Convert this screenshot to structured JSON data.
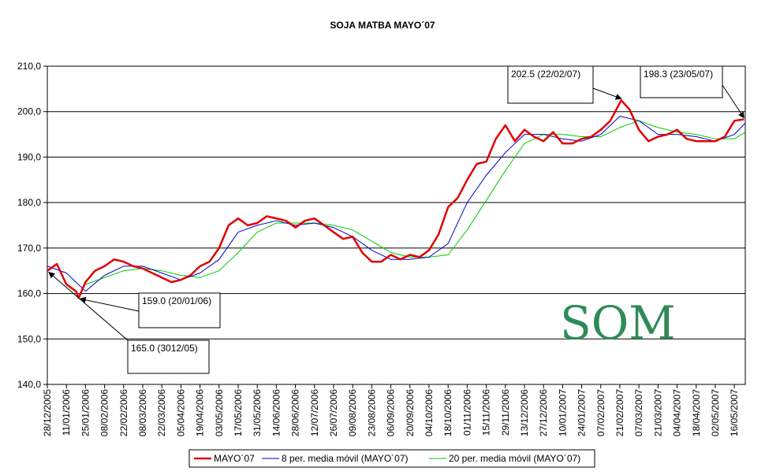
{
  "chart_data": {
    "type": "line",
    "title": "SOJA MATBA MAYO´07",
    "xlabel": "",
    "ylabel": "",
    "ylim": [
      140,
      210
    ],
    "yticks": [
      "140,0",
      "150,0",
      "160,0",
      "170,0",
      "180,0",
      "190,0",
      "200,0",
      "210,0"
    ],
    "ytick_values": [
      140,
      150,
      160,
      170,
      180,
      190,
      200,
      210
    ],
    "xlim": [
      "28/12/2005",
      "24/05/2007"
    ],
    "xticks": [
      "28/12/2005",
      "11/01/2006",
      "25/01/2006",
      "08/02/2006",
      "22/02/2006",
      "08/03/2006",
      "22/03/2006",
      "05/04/2006",
      "19/04/2006",
      "03/05/2006",
      "17/05/2006",
      "31/05/2006",
      "14/06/2006",
      "28/06/2006",
      "12/07/2006",
      "26/07/2006",
      "09/08/2006",
      "23/08/2006",
      "06/09/2006",
      "20/09/2006",
      "04/10/2006",
      "18/10/2006",
      "01/11/2006",
      "15/11/2006",
      "29/11/2006",
      "13/12/2006",
      "27/12/2006",
      "10/01/2007",
      "24/01/2007",
      "07/02/2007",
      "21/02/2007",
      "07/03/2007",
      "21/03/2007",
      "04/04/2007",
      "18/04/2007",
      "02/05/2007",
      "16/05/2007"
    ],
    "grid": "horizontal",
    "legend_position": "bottom",
    "series": [
      {
        "name": "MAYO´07",
        "color": "#e00000",
        "x": [
          "28/12/2005",
          "04/01/2006",
          "11/01/2006",
          "18/01/2006",
          "20/01/2006",
          "25/01/2006",
          "01/02/2006",
          "08/02/2006",
          "15/02/2006",
          "22/02/2006",
          "01/03/2006",
          "08/03/2006",
          "15/03/2006",
          "22/03/2006",
          "29/03/2006",
          "05/04/2006",
          "12/04/2006",
          "19/04/2006",
          "26/04/2006",
          "03/05/2006",
          "10/05/2006",
          "17/05/2006",
          "24/05/2006",
          "31/05/2006",
          "07/06/2006",
          "14/06/2006",
          "21/06/2006",
          "28/06/2006",
          "05/07/2006",
          "12/07/2006",
          "19/07/2006",
          "26/07/2006",
          "02/08/2006",
          "09/08/2006",
          "16/08/2006",
          "23/08/2006",
          "30/08/2006",
          "06/09/2006",
          "13/09/2006",
          "20/09/2006",
          "27/09/2006",
          "04/10/2006",
          "11/10/2006",
          "18/10/2006",
          "25/10/2006",
          "01/11/2006",
          "08/11/2006",
          "15/11/2006",
          "22/11/2006",
          "29/11/2006",
          "06/12/2006",
          "13/12/2006",
          "20/12/2006",
          "27/12/2006",
          "03/01/2007",
          "10/01/2007",
          "17/01/2007",
          "24/01/2007",
          "31/01/2007",
          "07/02/2007",
          "14/02/2007",
          "22/02/2007",
          "28/02/2007",
          "07/03/2007",
          "14/03/2007",
          "21/03/2007",
          "28/03/2007",
          "04/04/2007",
          "11/04/2007",
          "18/04/2007",
          "25/04/2007",
          "02/05/2007",
          "09/05/2007",
          "16/05/2007",
          "23/05/2007"
        ],
        "y": [
          165.0,
          166.5,
          162.0,
          160.5,
          159.0,
          162.5,
          165.0,
          166.0,
          167.5,
          167.0,
          166.0,
          165.5,
          164.5,
          163.5,
          162.5,
          163.0,
          164.0,
          166.0,
          167.0,
          170.0,
          175.0,
          176.5,
          175.0,
          175.5,
          177.0,
          176.5,
          176.0,
          174.5,
          176.0,
          176.5,
          175.0,
          173.5,
          172.0,
          172.5,
          169.0,
          167.0,
          167.0,
          168.5,
          167.5,
          168.5,
          168.0,
          169.5,
          173.0,
          179.0,
          181.0,
          185.0,
          188.5,
          189.0,
          194.0,
          197.0,
          193.5,
          196.0,
          194.5,
          193.5,
          195.5,
          193.0,
          193.0,
          194.0,
          194.5,
          196.0,
          198.0,
          202.5,
          200.5,
          196.0,
          193.5,
          194.5,
          195.0,
          196.0,
          194.0,
          193.5,
          193.5,
          193.5,
          194.5,
          198.0,
          198.3
        ]
      },
      {
        "name": "8 per. media móvil (MAYO´07)",
        "color": "#0000cc",
        "x": [
          "28/12/2005",
          "11/01/2006",
          "25/01/2006",
          "08/02/2006",
          "22/02/2006",
          "08/03/2006",
          "22/03/2006",
          "05/04/2006",
          "19/04/2006",
          "03/05/2006",
          "17/05/2006",
          "31/05/2006",
          "14/06/2006",
          "28/06/2006",
          "12/07/2006",
          "26/07/2006",
          "09/08/2006",
          "23/08/2006",
          "06/09/2006",
          "20/09/2006",
          "04/10/2006",
          "18/10/2006",
          "01/11/2006",
          "15/11/2006",
          "29/11/2006",
          "13/12/2006",
          "27/12/2006",
          "10/01/2007",
          "24/01/2007",
          "07/02/2007",
          "21/02/2007",
          "07/03/2007",
          "21/03/2007",
          "04/04/2007",
          "18/04/2007",
          "02/05/2007",
          "16/05/2007",
          "24/05/2007"
        ],
        "y": [
          166.0,
          164.5,
          160.5,
          164.0,
          166.0,
          166.0,
          164.5,
          163.0,
          164.5,
          167.5,
          173.5,
          175.0,
          176.0,
          175.0,
          175.5,
          174.5,
          172.5,
          169.5,
          167.5,
          167.5,
          168.0,
          171.0,
          180.0,
          186.0,
          191.0,
          195.0,
          195.0,
          194.0,
          193.5,
          195.0,
          199.0,
          198.0,
          195.0,
          195.0,
          194.5,
          193.5,
          195.0,
          197.5
        ]
      },
      {
        "name": "20 per. media móvil (MAYO´07)",
        "color": "#00cc00",
        "x": [
          "25/01/2006",
          "08/02/2006",
          "22/02/2006",
          "08/03/2006",
          "22/03/2006",
          "05/04/2006",
          "19/04/2006",
          "03/05/2006",
          "17/05/2006",
          "31/05/2006",
          "14/06/2006",
          "28/06/2006",
          "12/07/2006",
          "26/07/2006",
          "09/08/2006",
          "23/08/2006",
          "06/09/2006",
          "20/09/2006",
          "04/10/2006",
          "18/10/2006",
          "01/11/2006",
          "15/11/2006",
          "29/11/2006",
          "13/12/2006",
          "27/12/2006",
          "10/01/2007",
          "24/01/2007",
          "07/02/2007",
          "21/02/2007",
          "07/03/2007",
          "21/03/2007",
          "04/04/2007",
          "18/04/2007",
          "02/05/2007",
          "16/05/2007",
          "24/05/2007"
        ],
        "y": [
          162.0,
          163.5,
          165.0,
          165.5,
          165.0,
          164.0,
          163.5,
          165.0,
          169.0,
          173.5,
          175.5,
          175.5,
          175.5,
          175.0,
          174.0,
          171.5,
          169.0,
          168.0,
          168.0,
          168.5,
          174.0,
          180.5,
          187.0,
          193.0,
          195.0,
          195.0,
          194.5,
          194.5,
          196.5,
          198.0,
          196.5,
          195.5,
          195.0,
          194.0,
          194.0,
          195.5
        ]
      }
    ],
    "annotations": [
      {
        "text": "165.0 (3012/05)",
        "x": "28/12/2005",
        "y": 165.0
      },
      {
        "text": "159.0 (20/01/06)",
        "x": "20/01/2006",
        "y": 159.0
      },
      {
        "text": "202.5 (22/02/07)",
        "x": "22/02/2007",
        "y": 202.5
      },
      {
        "text": "198.3 (23/05/07)",
        "x": "23/05/2007",
        "y": 198.3
      }
    ],
    "watermark": "SOM"
  }
}
